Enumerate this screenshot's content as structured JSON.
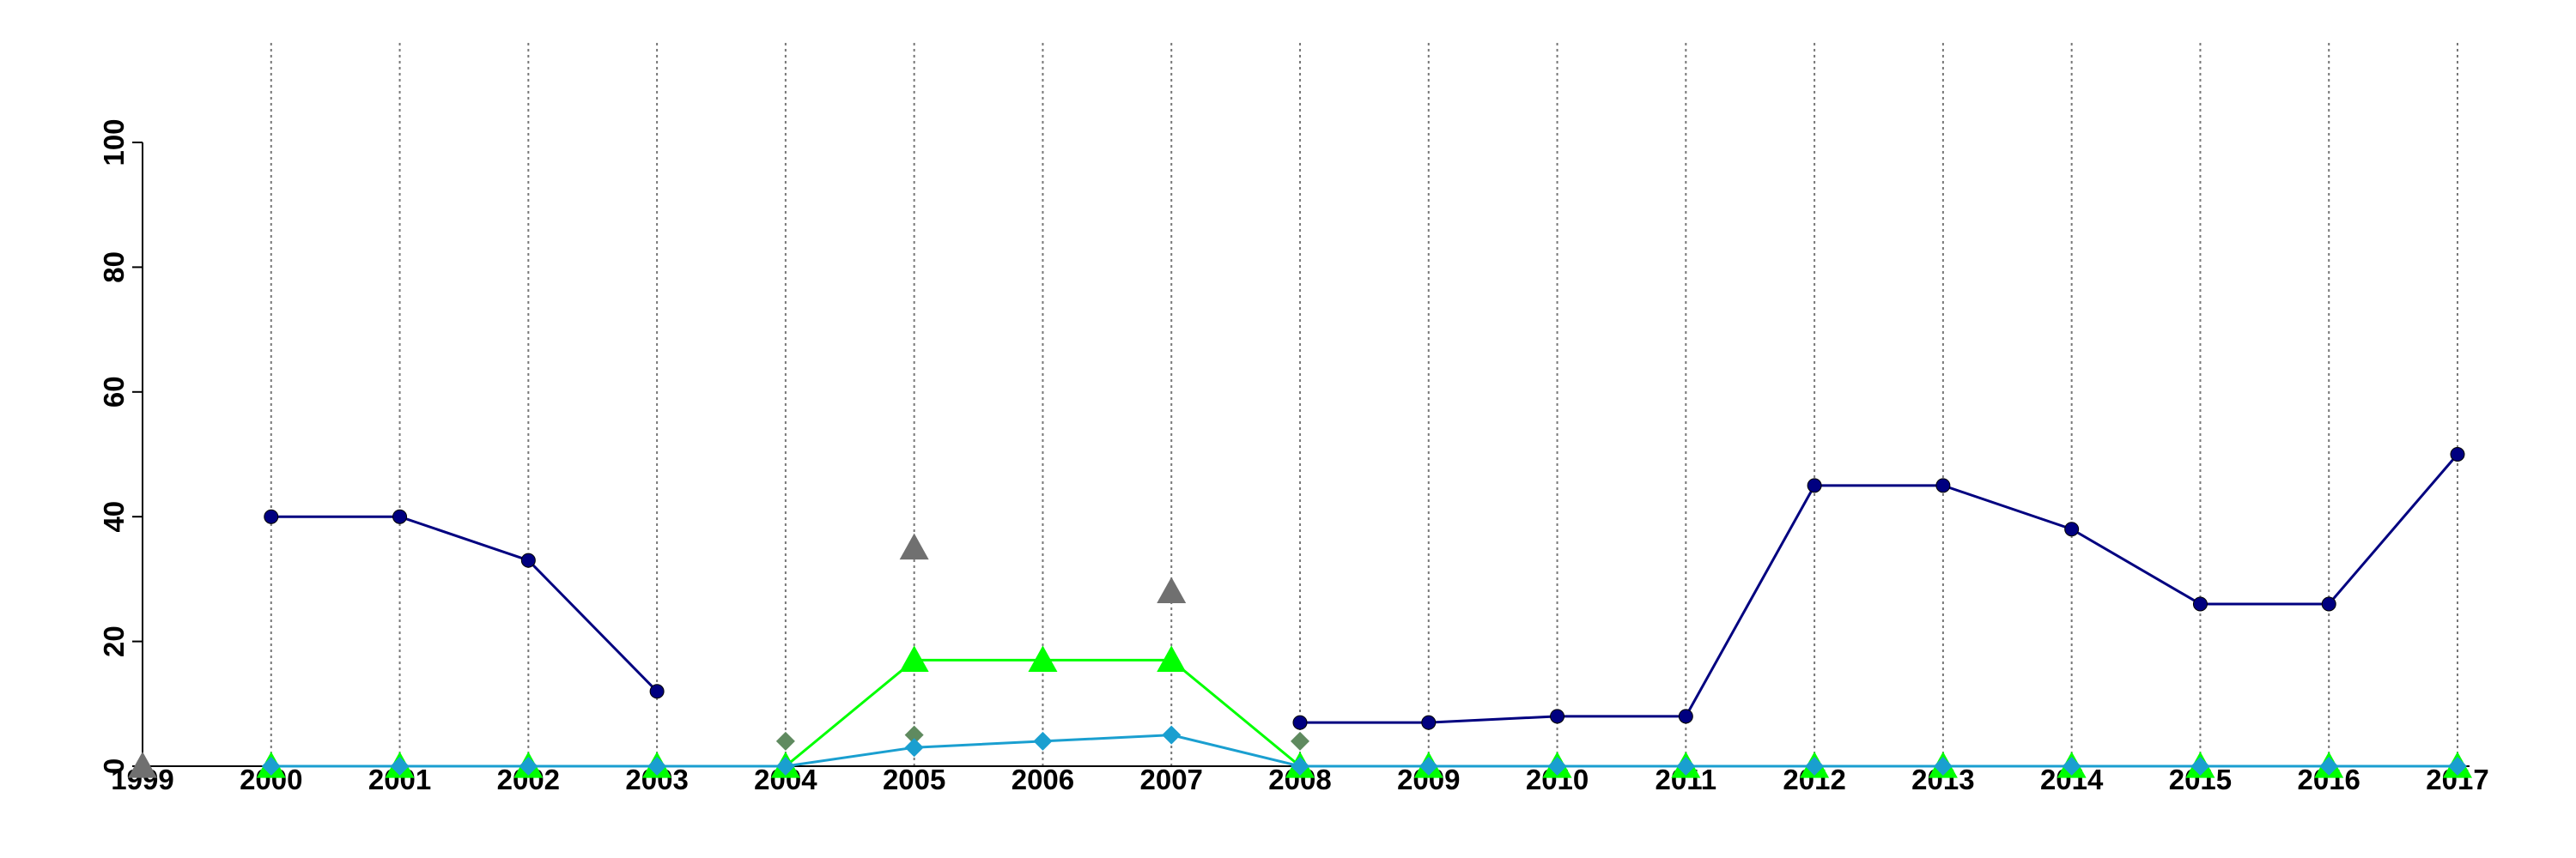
{
  "chart_data": {
    "type": "line",
    "x": [
      1999,
      2000,
      2001,
      2002,
      2003,
      2004,
      2005,
      2006,
      2007,
      2008,
      2009,
      2010,
      2011,
      2012,
      2013,
      2014,
      2015,
      2016,
      2017
    ],
    "series": [
      {
        "color": "#000080",
        "marker": "circle",
        "lines": true,
        "values": [
          null,
          40,
          40,
          33,
          12,
          null,
          null,
          null,
          null,
          7,
          7,
          8,
          8,
          45,
          45,
          38,
          26,
          26,
          50
        ]
      },
      {
        "color": "#707070",
        "marker": "triangle",
        "lines": false,
        "values": [
          0,
          null,
          null,
          null,
          null,
          null,
          35,
          null,
          28,
          null,
          null,
          null,
          null,
          null,
          null,
          null,
          null,
          null,
          null
        ]
      },
      {
        "color": "#5f8a5f",
        "marker": "diamond",
        "lines": false,
        "values": [
          null,
          null,
          null,
          null,
          null,
          4,
          5,
          null,
          null,
          4,
          null,
          null,
          null,
          null,
          null,
          null,
          null,
          null,
          null
        ]
      },
      {
        "color": "#00ff00",
        "marker": "triangle",
        "lines": true,
        "values": [
          null,
          0,
          0,
          0,
          0,
          0,
          17,
          17,
          17,
          0,
          0,
          0,
          0,
          0,
          0,
          0,
          0,
          0,
          0
        ]
      },
      {
        "color": "#1a9fd0",
        "marker": "diamond",
        "lines": true,
        "values": [
          null,
          0,
          0,
          0,
          0,
          0,
          3,
          4,
          5,
          0,
          0,
          0,
          0,
          0,
          0,
          0,
          0,
          0,
          0
        ]
      }
    ],
    "xlim": [
      1999,
      2017
    ],
    "xticks": [
      1999,
      2000,
      2001,
      2002,
      2003,
      2004,
      2005,
      2006,
      2007,
      2008,
      2009,
      2010,
      2011,
      2012,
      2013,
      2014,
      2015,
      2016,
      2017
    ],
    "ylim": [
      0,
      100
    ],
    "yticks": [
      0,
      20,
      40,
      60,
      80,
      100
    ],
    "grid": "x"
  }
}
